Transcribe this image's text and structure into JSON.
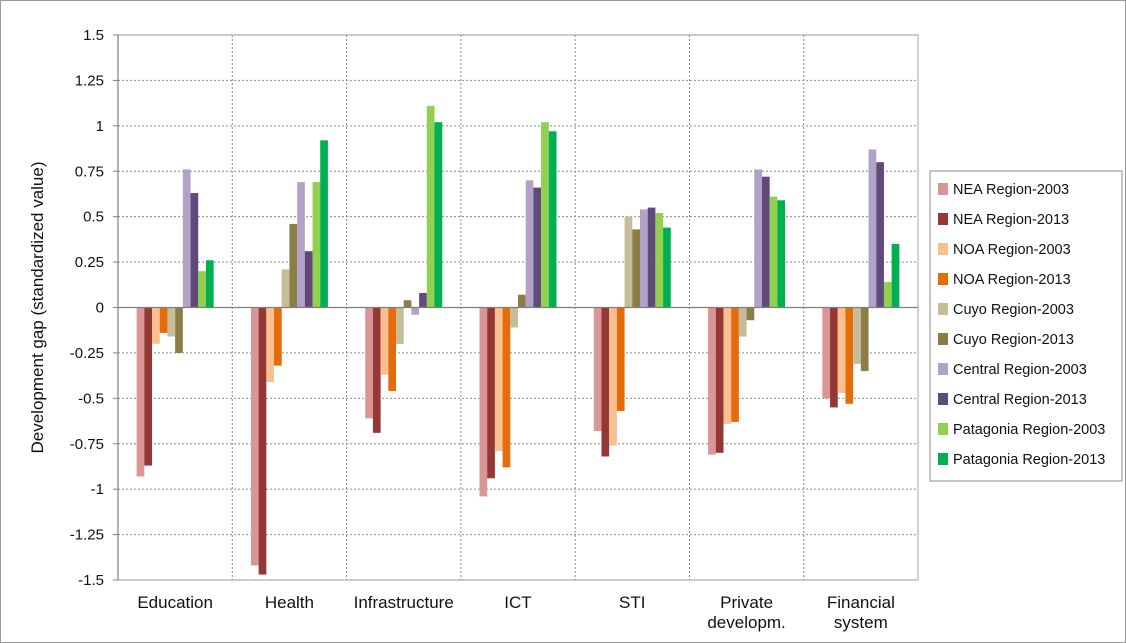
{
  "chart_data": {
    "type": "bar",
    "title": "",
    "xlabel": "",
    "ylabel": "Development gap (standardized value)",
    "ylim": [
      -1.5,
      1.5
    ],
    "yticks": [
      1.5,
      1.25,
      1,
      0.75,
      0.5,
      0.25,
      0,
      -0.25,
      -0.5,
      -0.75,
      -1,
      -1.25,
      -1.5
    ],
    "grid": true,
    "legend": "right",
    "categories": [
      [
        "Education"
      ],
      [
        "Health"
      ],
      [
        "Infrastructure"
      ],
      [
        "ICT"
      ],
      [
        "STI"
      ],
      [
        "Private",
        "developm."
      ],
      [
        "Financial",
        "system"
      ]
    ],
    "series": [
      {
        "name": "NEA Region-2003",
        "color": "#d99694",
        "values": [
          -0.93,
          -1.42,
          -0.61,
          -1.04,
          -0.68,
          -0.81,
          -0.5
        ]
      },
      {
        "name": "NEA Region-2013",
        "color": "#953735",
        "values": [
          -0.87,
          -1.47,
          -0.69,
          -0.94,
          -0.82,
          -0.8,
          -0.55
        ]
      },
      {
        "name": "NOA Region-2003",
        "color": "#fac090",
        "values": [
          -0.2,
          -0.41,
          -0.37,
          -0.79,
          -0.76,
          -0.64,
          -0.47
        ]
      },
      {
        "name": "NOA Region-2013",
        "color": "#e46c0a",
        "values": [
          -0.14,
          -0.32,
          -0.46,
          -0.88,
          -0.57,
          -0.63,
          -0.53
        ]
      },
      {
        "name": "Cuyo Region-2003",
        "color": "#c4bd97",
        "values": [
          -0.16,
          0.21,
          -0.2,
          -0.11,
          0.5,
          -0.16,
          -0.31
        ]
      },
      {
        "name": "Cuyo Region-2013",
        "color": "#8c7c46",
        "values": [
          -0.25,
          0.46,
          0.04,
          0.07,
          0.43,
          -0.07,
          -0.35
        ]
      },
      {
        "name": "Central Region-2003",
        "color": "#b3a2c7",
        "values": [
          0.76,
          0.69,
          -0.04,
          0.7,
          0.54,
          0.76,
          0.87
        ]
      },
      {
        "name": "Central Region-2013",
        "color": "#604a7b",
        "values": [
          0.63,
          0.31,
          0.08,
          0.66,
          0.55,
          0.72,
          0.8
        ]
      },
      {
        "name": "Patagonia Region-2003",
        "color": "#92d050",
        "values": [
          0.2,
          0.69,
          1.11,
          1.02,
          0.52,
          0.61,
          0.14
        ]
      },
      {
        "name": "Patagonia Region-2013",
        "color": "#00b050",
        "values": [
          0.26,
          0.92,
          1.02,
          0.97,
          0.44,
          0.59,
          0.35
        ]
      }
    ]
  }
}
